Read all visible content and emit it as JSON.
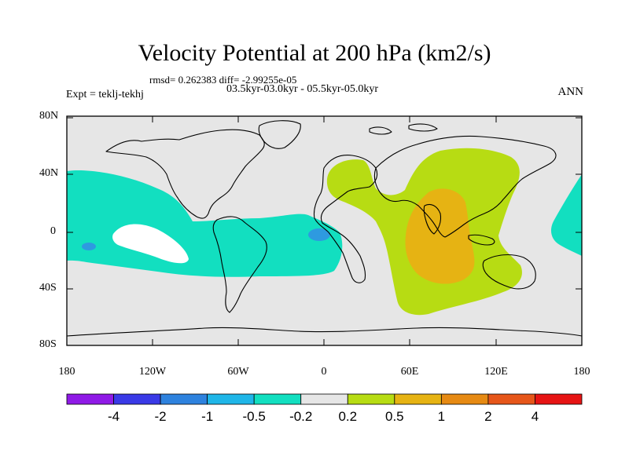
{
  "title": "Velocity Potential at 200 hPa (km2/s)",
  "stats": "rmsd= 0.262383 diff= -2.99255e-05",
  "period": "03.5kyr-03.0kyr - 05.5kyr-05.0kyr",
  "expt": "Expt = teklj-tekhj",
  "season": "ANN",
  "lat_labels": [
    "80N",
    "40N",
    "0",
    "40S",
    "80S"
  ],
  "lon_labels": [
    "180",
    "120W",
    "60W",
    "0",
    "60E",
    "120E",
    "180"
  ],
  "colorbar": {
    "labels": [
      "-4",
      "-2",
      "-1",
      "-0.5",
      "-0.2",
      "0.2",
      "0.5",
      "1",
      "2",
      "4"
    ],
    "colors": [
      "#8f1ae6",
      "#3a3ae6",
      "#2e82de",
      "#1fb6e8",
      "#12dfc0",
      "#e6e6e6",
      "#b7dc13",
      "#e6b313",
      "#e68a13",
      "#e6561a",
      "#e61414"
    ]
  },
  "colors": {
    "background": "#e6e6e6",
    "teal": "#12dfc0",
    "blue": "#2e9ae0",
    "yellowgreen": "#b7dc13",
    "orange": "#e6b313"
  }
}
